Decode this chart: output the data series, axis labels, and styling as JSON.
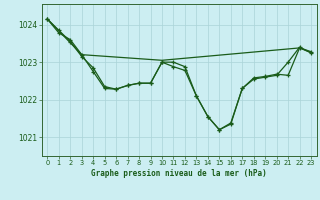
{
  "title": "Graphe pression niveau de la mer (hPa)",
  "bg_color": "#cceef2",
  "grid_color": "#aad4d8",
  "line_color": "#1a5c1a",
  "xlim": [
    -0.5,
    23.5
  ],
  "ylim": [
    1020.5,
    1024.55
  ],
  "yticks": [
    1021,
    1022,
    1023,
    1024
  ],
  "xticks": [
    0,
    1,
    2,
    3,
    4,
    5,
    6,
    7,
    8,
    9,
    10,
    11,
    12,
    13,
    14,
    15,
    16,
    17,
    18,
    19,
    20,
    21,
    22,
    23
  ],
  "series1_x": [
    0,
    1,
    2,
    3,
    4,
    5,
    6,
    7,
    8,
    9,
    10,
    11,
    12,
    13,
    14,
    15,
    16,
    17,
    18,
    19,
    20,
    21,
    22,
    23
  ],
  "series1_y": [
    1024.15,
    1023.85,
    1023.55,
    1023.15,
    1022.85,
    1022.35,
    1022.28,
    1022.38,
    1022.44,
    1022.44,
    1023.0,
    1022.88,
    1022.78,
    1022.1,
    1021.55,
    1021.2,
    1021.35,
    1022.3,
    1022.55,
    1022.6,
    1022.65,
    1023.0,
    1023.4,
    1023.25
  ],
  "series2_x": [
    0,
    1,
    2,
    3,
    4,
    5,
    6,
    7,
    8,
    9,
    10,
    11,
    12,
    13,
    14,
    15,
    16,
    17,
    18,
    19,
    20,
    21,
    22,
    23
  ],
  "series2_y": [
    1024.15,
    1023.78,
    1023.6,
    1023.2,
    1022.75,
    1022.3,
    1022.28,
    1022.38,
    1022.44,
    1022.44,
    1023.0,
    1023.0,
    1022.88,
    1022.1,
    1021.55,
    1021.2,
    1021.38,
    1022.3,
    1022.58,
    1022.62,
    1022.68,
    1022.65,
    1023.38,
    1023.28
  ],
  "series3_x": [
    0,
    3,
    10,
    22,
    23
  ],
  "series3_y": [
    1024.15,
    1023.2,
    1023.05,
    1023.38,
    1023.25
  ],
  "figwidth": 3.2,
  "figheight": 2.0,
  "dpi": 100
}
